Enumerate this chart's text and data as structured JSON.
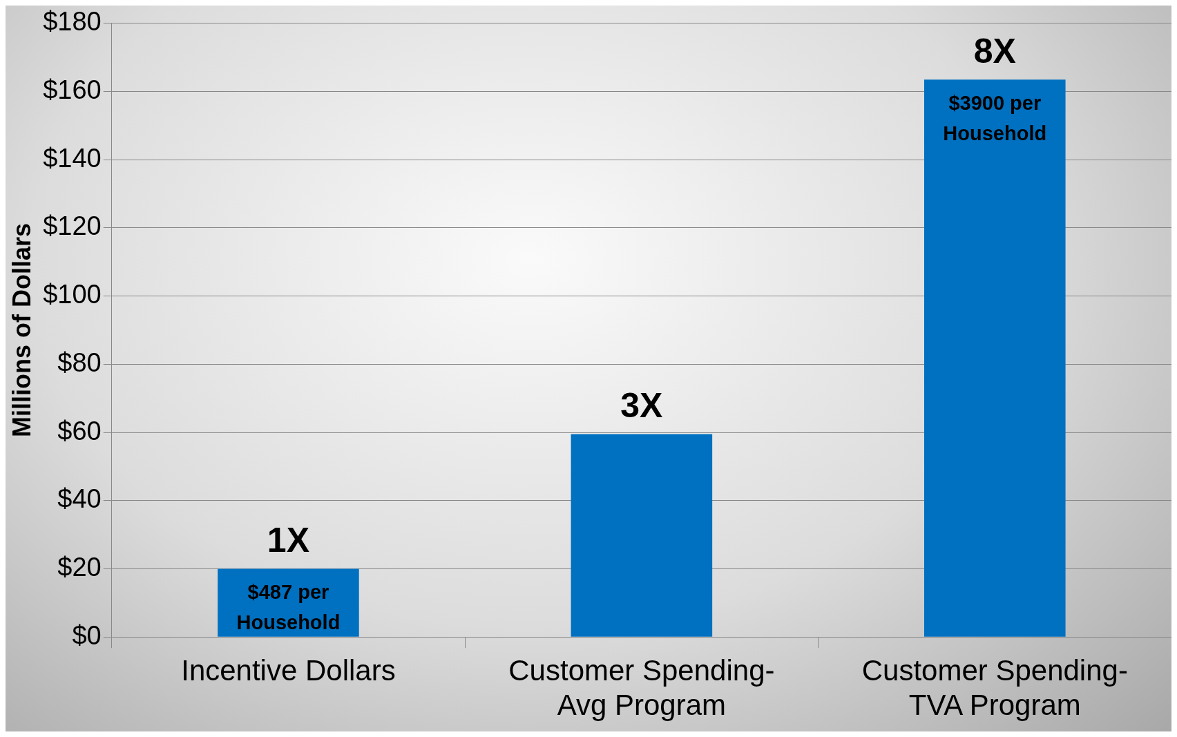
{
  "chart_data": {
    "type": "bar",
    "ylabel": "Millions of Dollars",
    "categories": [
      "Incentive Dollars",
      "Customer Spending-Avg Program",
      "Customer Spending-TVA Program"
    ],
    "values": [
      20,
      59.5,
      163.5
    ],
    "color": "#0070c0",
    "ylim": [
      0,
      180
    ],
    "yticks": [
      {
        "value": 0,
        "label": "$0"
      },
      {
        "value": 20,
        "label": "$20"
      },
      {
        "value": 40,
        "label": "$40"
      },
      {
        "value": 60,
        "label": "$60"
      },
      {
        "value": 80,
        "label": "$80"
      },
      {
        "value": 100,
        "label": "$100"
      },
      {
        "value": 120,
        "label": "$120"
      },
      {
        "value": 140,
        "label": "$140"
      },
      {
        "value": 160,
        "label": "$160"
      },
      {
        "value": 180,
        "label": "$180"
      }
    ],
    "grid": "y",
    "legend": false,
    "annotations": [
      {
        "text": "1X",
        "x": "Incentive Dollars",
        "y": 20
      },
      {
        "text": "3X",
        "x": "Customer Spending-Avg Program",
        "y": 59.5
      },
      {
        "text": "8X",
        "x": "Customer Spending-TVA Program",
        "y": 163.5
      },
      {
        "text": "$487 per Household",
        "x": "Incentive Dollars",
        "y": 20
      },
      {
        "text": "$3900 per Household",
        "x": "Customer Spending-TVA Program",
        "y": 163.5
      }
    ]
  }
}
